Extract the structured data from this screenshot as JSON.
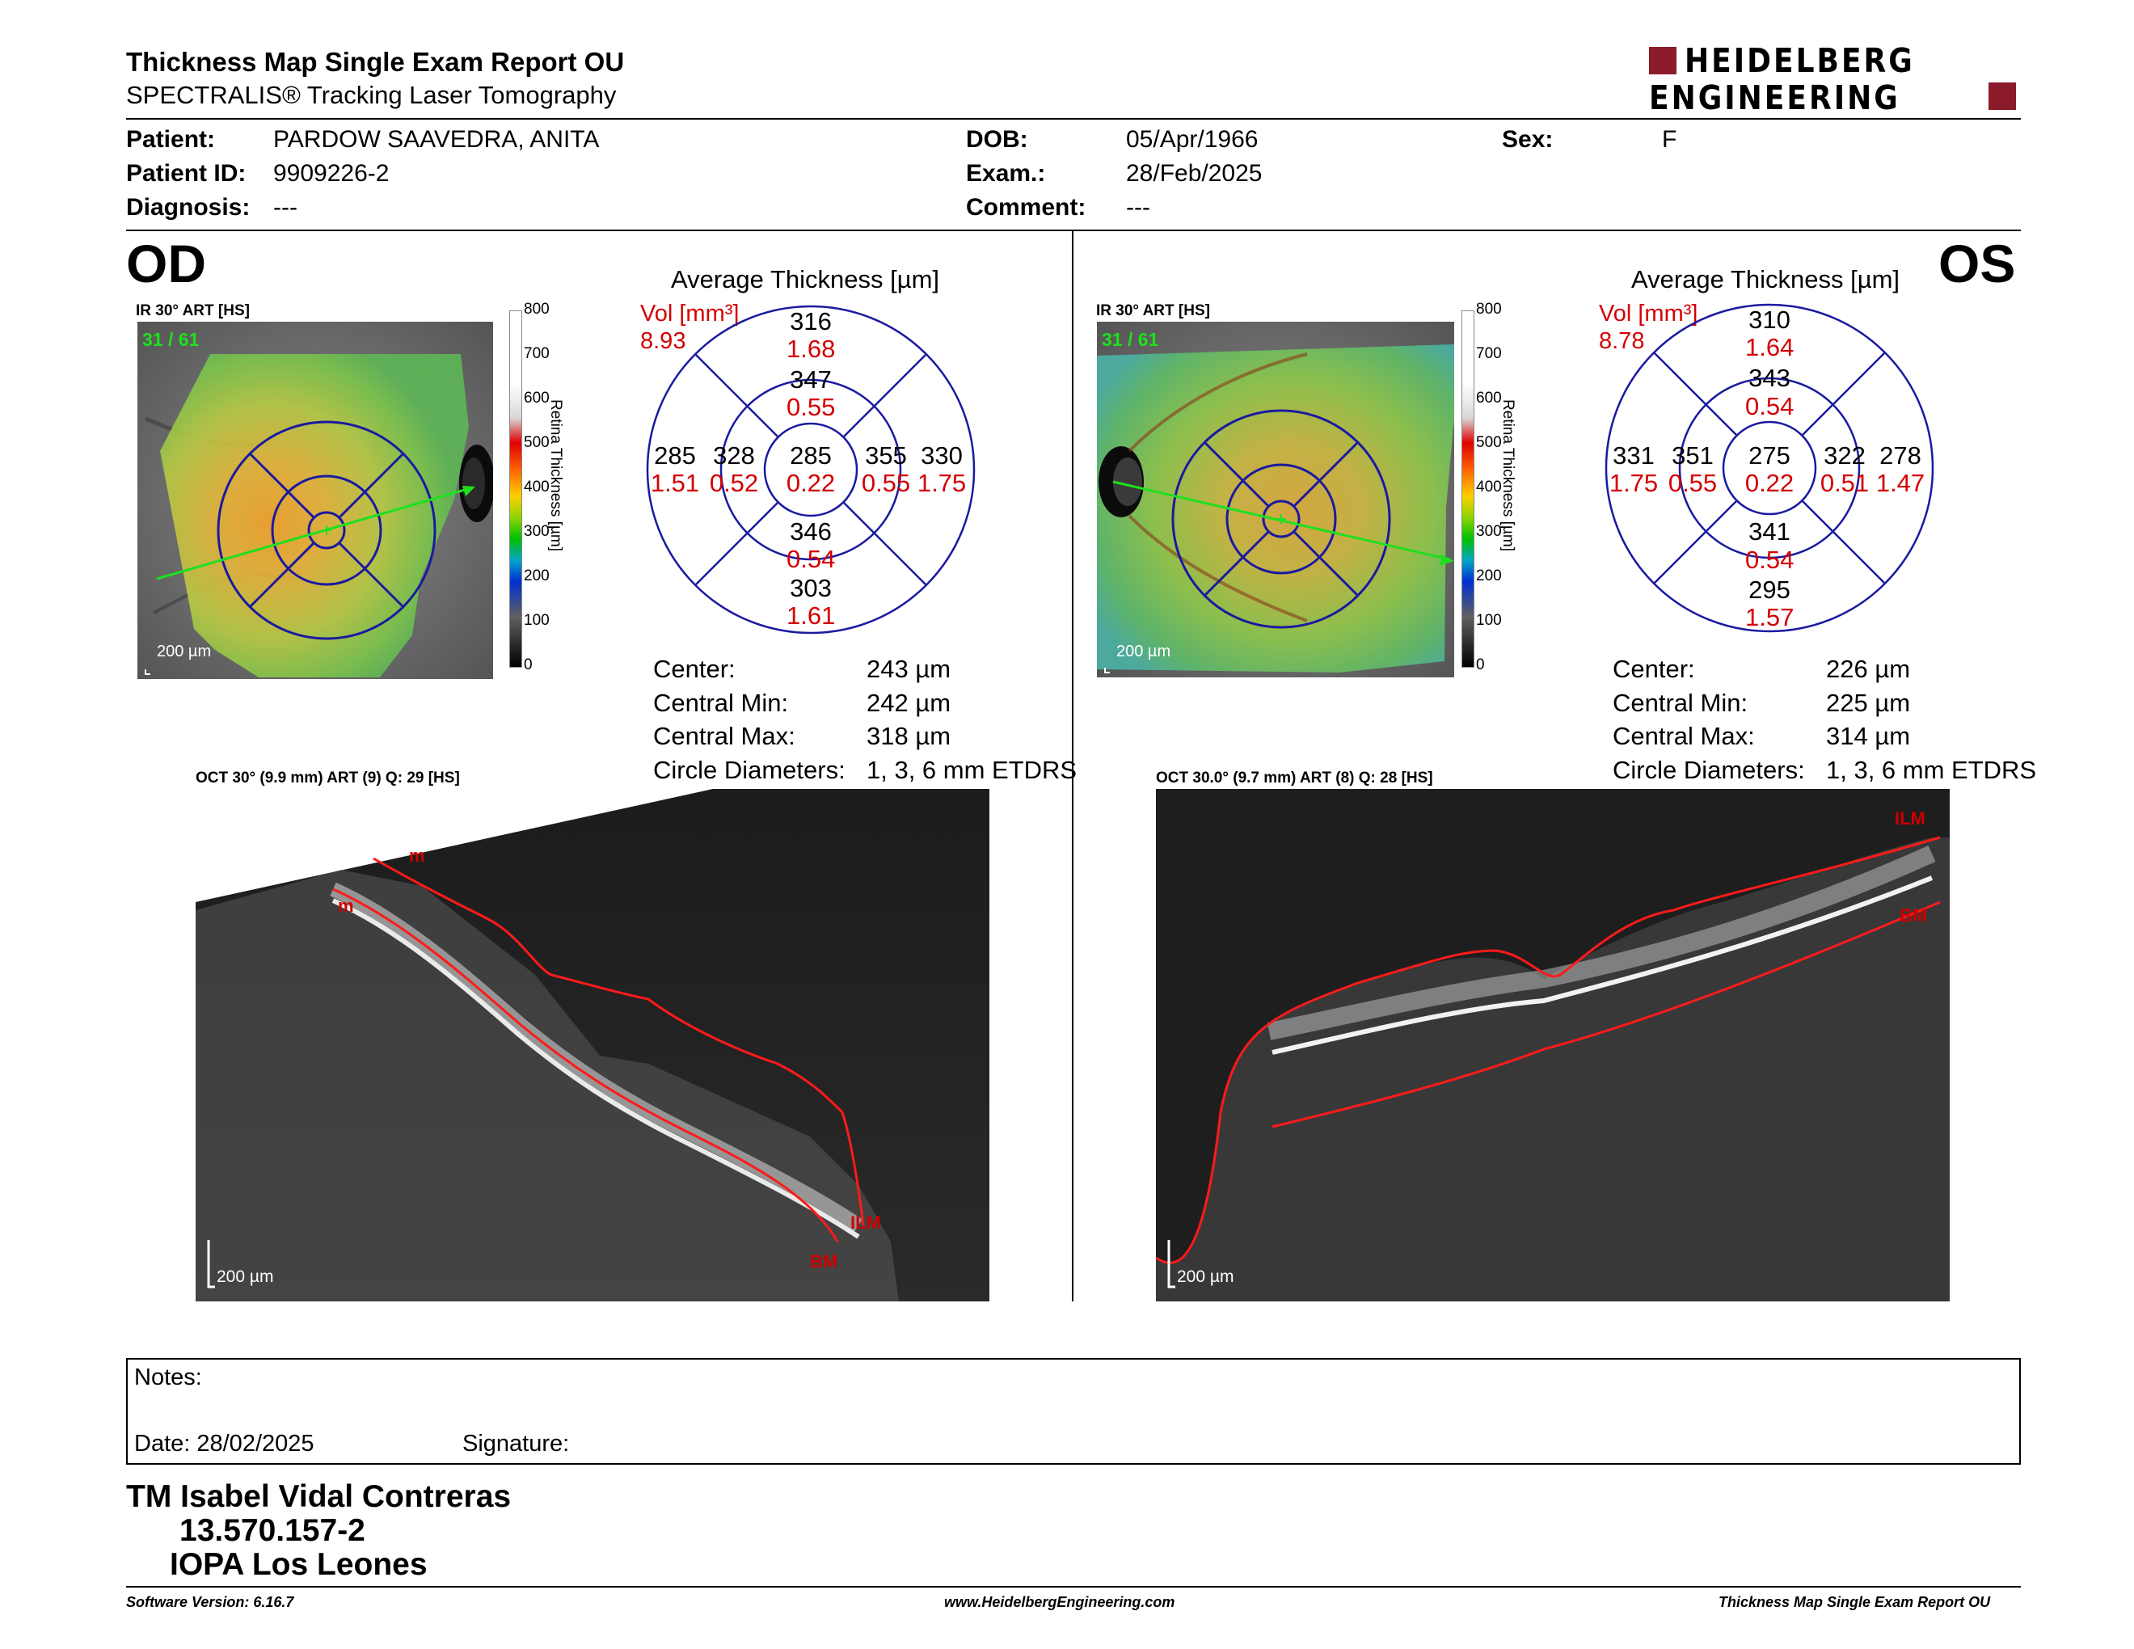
{
  "header": {
    "title": "Thickness Map Single Exam Report OU",
    "subtitle": "SPECTRALIS® Tracking Laser Tomography",
    "logo_line1": "HEIDELBERG",
    "logo_line2": "ENGINEERING",
    "brand_color": "#8b1a2b"
  },
  "patient": {
    "patient_label": "Patient:",
    "patient_value": "PARDOW SAAVEDRA, ANITA",
    "id_label": "Patient ID:",
    "id_value": "9909226-2",
    "diagnosis_label": "Diagnosis:",
    "diagnosis_value": "---",
    "dob_label": "DOB:",
    "dob_value": "05/Apr/1966",
    "exam_label": "Exam.:",
    "exam_value": "28/Feb/2025",
    "comment_label": "Comment:",
    "comment_value": "---",
    "sex_label": "Sex:",
    "sex_value": "F"
  },
  "od": {
    "eye": "OD",
    "ir_label": "IR 30° ART [HS]",
    "frame_count": "31 / 61",
    "scale": "200 µm",
    "avg_title": "Average Thickness [µm]",
    "vol_label": "Vol [mm³]",
    "vol_value": "8.93",
    "sectors": {
      "outer_sup": {
        "t": "316",
        "v": "1.68"
      },
      "inner_sup": {
        "t": "347",
        "v": "0.55"
      },
      "outer_left": {
        "t": "285",
        "v": "1.51"
      },
      "inner_left": {
        "t": "328",
        "v": "0.52"
      },
      "center": {
        "t": "285",
        "v": "0.22"
      },
      "inner_right": {
        "t": "355",
        "v": "0.55"
      },
      "outer_right": {
        "t": "330",
        "v": "1.75"
      },
      "inner_inf": {
        "t": "346",
        "v": "0.54"
      },
      "outer_inf": {
        "t": "303",
        "v": "1.61"
      }
    },
    "stats": {
      "center_label": "Center:",
      "center_value": "243 µm",
      "min_label": "Central Min:",
      "min_value": "242 µm",
      "max_label": "Central Max:",
      "max_value": "318 µm",
      "diam_label": "Circle Diameters:",
      "diam_value": "1, 3, 6 mm ETDRS"
    },
    "oct_label": "OCT 30° (9.9 mm) ART (9) Q: 29 [HS]",
    "oct_scale": "200 µm",
    "ilm": "ILM",
    "bm": "BM",
    "m1": "m",
    "m2": "m"
  },
  "os": {
    "eye": "OS",
    "ir_label": "IR 30° ART [HS]",
    "frame_count": "31 / 61",
    "scale": "200 µm",
    "avg_title": "Average Thickness [µm]",
    "vol_label": "Vol [mm³]",
    "vol_value": "8.78",
    "sectors": {
      "outer_sup": {
        "t": "310",
        "v": "1.64"
      },
      "inner_sup": {
        "t": "343",
        "v": "0.54"
      },
      "outer_left": {
        "t": "331",
        "v": "1.75"
      },
      "inner_left": {
        "t": "351",
        "v": "0.55"
      },
      "center": {
        "t": "275",
        "v": "0.22"
      },
      "inner_right": {
        "t": "322",
        "v": "0.51"
      },
      "outer_right": {
        "t": "278",
        "v": "1.47"
      },
      "inner_inf": {
        "t": "341",
        "v": "0.54"
      },
      "outer_inf": {
        "t": "295",
        "v": "1.57"
      }
    },
    "stats": {
      "center_label": "Center:",
      "center_value": "226 µm",
      "min_label": "Central Min:",
      "min_value": "225 µm",
      "max_label": "Central Max:",
      "max_value": "314 µm",
      "diam_label": "Circle Diameters:",
      "diam_value": "1, 3, 6 mm ETDRS"
    },
    "oct_label": "OCT 30.0° (9.7 mm) ART (8) Q: 28 [HS]",
    "oct_scale": "200 µm",
    "ilm": "ILM",
    "bm": "BM"
  },
  "colorbar": {
    "ticks": [
      "800",
      "700",
      "600",
      "500",
      "400",
      "300",
      "200",
      "100",
      "0"
    ],
    "axis_label": "Retina Thickness [µm]"
  },
  "notes": {
    "notes_label": "Notes:",
    "date_label": "Date: 28/02/2025",
    "signature_label": "Signature:"
  },
  "signature": {
    "line1": "TM Isabel Vidal Contreras",
    "line2": "13.570.157-2",
    "line3": "IOPA Los Leones"
  },
  "footer": {
    "software": "Software Version: 6.16.7",
    "website": "www.HeidelbergEngineering.com",
    "report": "Thickness Map Single Exam Report OU"
  }
}
